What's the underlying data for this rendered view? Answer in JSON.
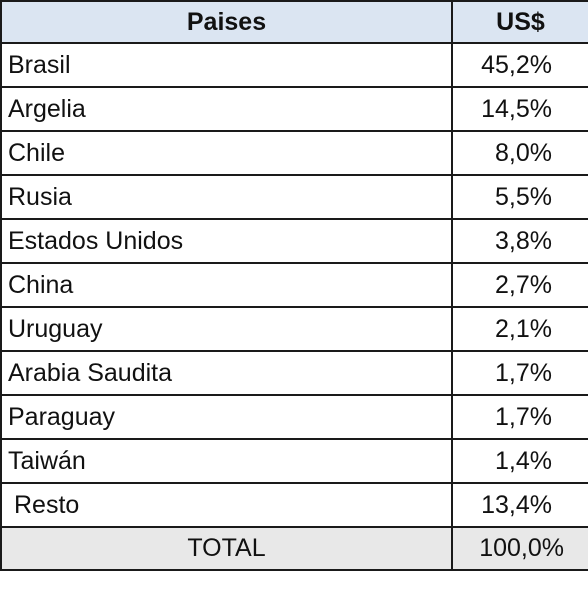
{
  "table": {
    "headers": {
      "country": "Paises",
      "value": "US$"
    },
    "rows": [
      {
        "country": "Brasil",
        "value": "45,2%"
      },
      {
        "country": "Argelia",
        "value": "14,5%"
      },
      {
        "country": "Chile",
        "value": "8,0%"
      },
      {
        "country": "Rusia",
        "value": "5,5%"
      },
      {
        "country": "Estados Unidos",
        "value": "3,8%"
      },
      {
        "country": "China",
        "value": "2,7%"
      },
      {
        "country": "Uruguay",
        "value": "2,1%"
      },
      {
        "country": "Arabia Saudita",
        "value": "1,7%"
      },
      {
        "country": "Paraguay",
        "value": "1,7%"
      },
      {
        "country": "Taiwán",
        "value": "1,4%"
      },
      {
        "country": "Resto",
        "value": "13,4%"
      }
    ],
    "total": {
      "label": "TOTAL",
      "value": "100,0%"
    }
  },
  "colors": {
    "header_bg": "#dbe5f2",
    "total_bg": "#e8e8e8",
    "border": "#1a1a1a"
  }
}
